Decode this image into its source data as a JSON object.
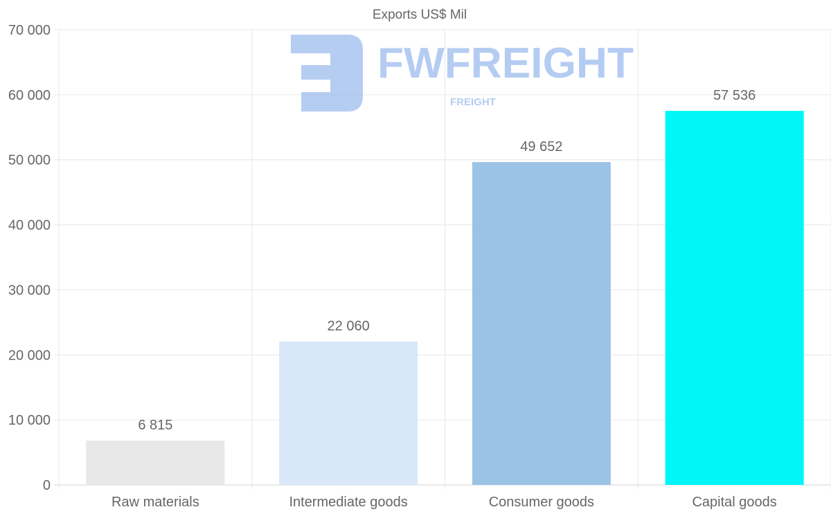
{
  "chart_data": {
    "type": "bar",
    "title": "Exports US$ Mil",
    "categories": [
      "Raw materials",
      "Intermediate goods",
      "Consumer goods",
      "Capital goods"
    ],
    "values": [
      6815,
      22060,
      49652,
      57536
    ],
    "value_labels": [
      "6 815",
      "22 060",
      "49 652",
      "57 536"
    ],
    "colors": [
      "#e8e8e8",
      "#d8e8f8",
      "#9bc3e6",
      "#00f7f7"
    ],
    "ylim": [
      0,
      70000
    ],
    "yticks": [
      0,
      10000,
      20000,
      30000,
      40000,
      50000,
      60000,
      70000
    ],
    "ytick_labels": [
      "0",
      "10 000",
      "20 000",
      "30 000",
      "40 000",
      "50 000",
      "60 000",
      "70 000"
    ],
    "xlabel": "",
    "ylabel": "",
    "grid": true,
    "legend": "none"
  },
  "watermark": {
    "brand": "FWFREIGHT",
    "sub": "FREIGHT"
  }
}
